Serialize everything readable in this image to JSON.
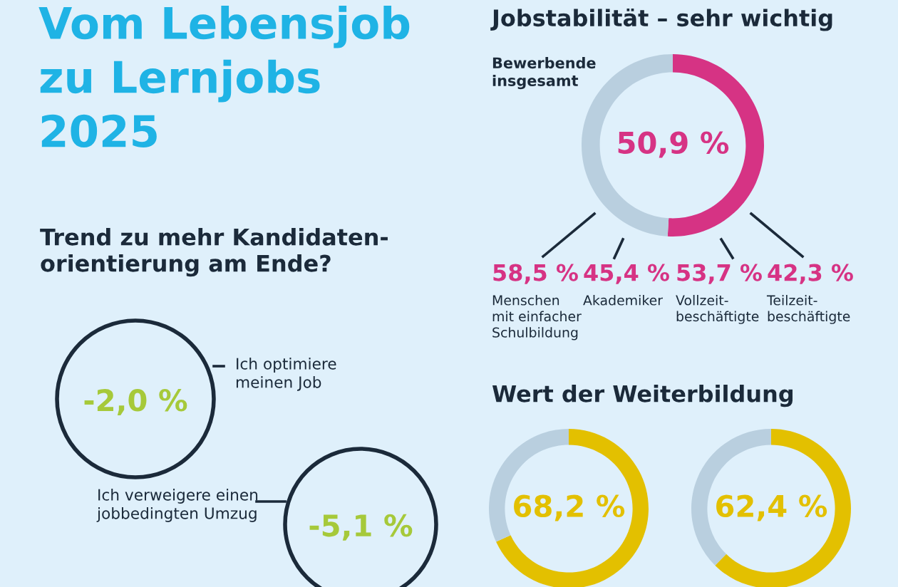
{
  "chart_data": [
    {
      "type": "other",
      "title": "Vom Lebensjob\nzu Lernjobs\n2025"
    },
    {
      "type": "other",
      "title": "Trend zu mehr Kandidaten-\norientierung am Ende?",
      "annotations": [
        "-2,0 %",
        "Ich optimiere\nmeinen Job"
      ]
    },
    {
      "type": "other",
      "annotations": [
        "-5,1 %",
        "Ich verweigere einen\njobbedingten Umzug"
      ]
    },
    {
      "type": "donut",
      "title": "Jobstabilität – sehr wichtig",
      "categories": [
        null,
        null
      ],
      "values": [
        50.9,
        49.1
      ],
      "colors": [
        "#d63384",
        "#b9cfdf"
      ],
      "value_labels": [
        "50,9 %",
        null
      ],
      "annotations": [
        "Bewerbende\ninsgesamt"
      ]
    },
    {
      "type": "other",
      "annotations": [
        "58,5 %\nMenschen\nmit einfacher\nSchulbildung",
        "45,4 %\nAkademiker",
        "53,7 %\nVollzeit-\nbeschäftigte",
        "42,3 %\nTeilzeit-\nbeschäftigte"
      ]
    },
    {
      "type": "donut",
      "title": "Wert der Weiterbildung",
      "categories": [
        null,
        null
      ],
      "values": [
        68.2,
        31.8
      ],
      "colors": [
        "#e3c000",
        "#b9cfdf"
      ],
      "value_labels": [
        "68,2 %",
        null
      ]
    },
    {
      "type": "donut",
      "categories": [
        null,
        null
      ],
      "values": [
        62.4,
        37.6
      ],
      "colors": [
        "#e3c000",
        "#b9cfdf"
      ],
      "value_labels": [
        "62,4 %",
        null
      ]
    }
  ]
}
